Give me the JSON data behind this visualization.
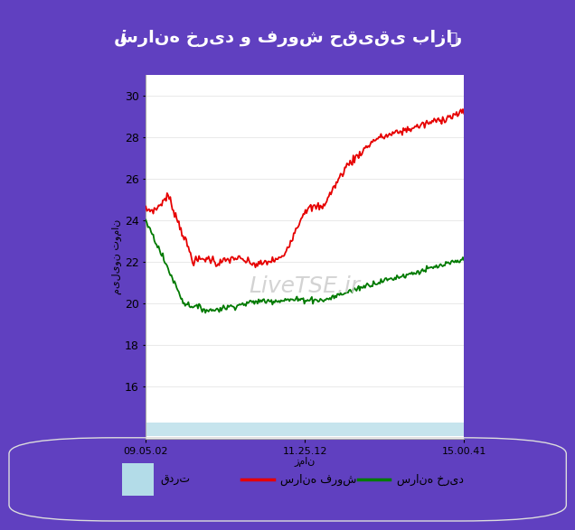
{
  "title": "سرانه خرید و فروش حقیقی بازار",
  "ylabel": "میلیون تومان",
  "xlabel": "زمان",
  "xtick_labels": [
    "09.05.02",
    "11.25.12",
    "15.00.41"
  ],
  "ytick_labels": [
    16,
    18,
    20,
    22,
    24,
    26,
    28,
    30
  ],
  "ylim": [
    13.5,
    31.0
  ],
  "xlim": [
    0,
    100
  ],
  "red_line_label": "سرانه فروش",
  "green_line_label": "سرانه خرید",
  "blue_fill_label": "قدرت",
  "red_color": "#e60000",
  "green_color": "#007a00",
  "fill_color": "#b3dce8",
  "background_color": "#ffffff",
  "outer_bg": "#6040c0",
  "header_bg": "#5535b5",
  "watermark": "LiveTSE.ir",
  "watermark_color": "#cccccc",
  "watermark_fontsize": 18,
  "title_fontsize": 14,
  "legend_fontsize": 9,
  "axis_label_fontsize": 8
}
